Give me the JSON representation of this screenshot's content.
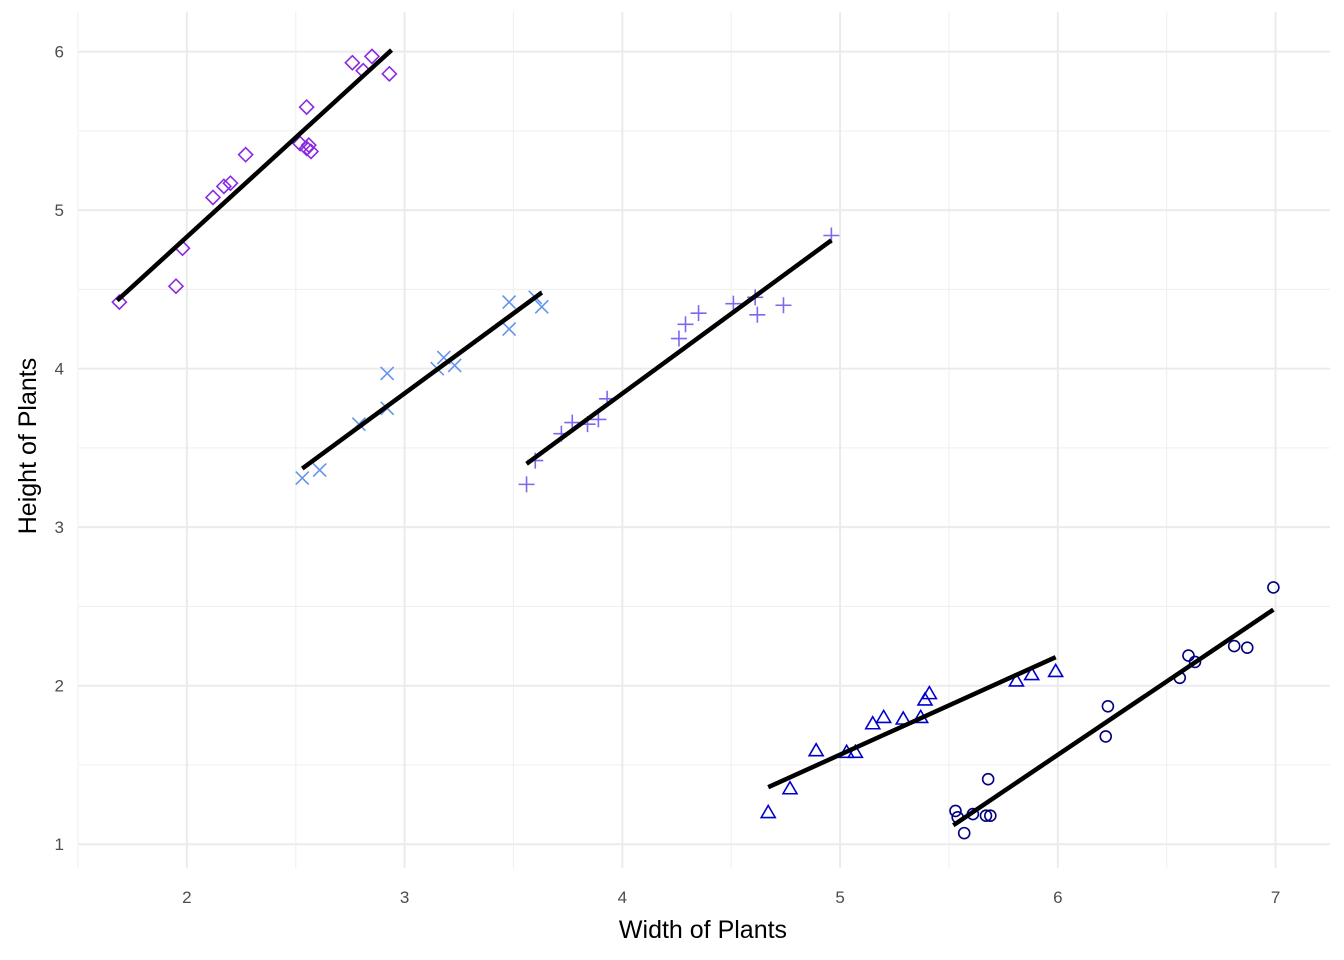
{
  "chart_data": {
    "type": "scatter",
    "title": "",
    "xlabel": "Width of Plants",
    "ylabel": "Height of Plants",
    "xlim": [
      1.5,
      7.25
    ],
    "ylim": [
      0.85,
      6.25
    ],
    "x_ticks": [
      2,
      3,
      4,
      5,
      6,
      7
    ],
    "y_ticks": [
      1,
      2,
      3,
      4,
      5,
      6
    ],
    "grid": true,
    "legend": "none",
    "series": [
      {
        "marker": "diamond",
        "color": "#8a2be2",
        "points": [
          [
            1.69,
            4.42
          ],
          [
            1.95,
            4.52
          ],
          [
            1.98,
            4.76
          ],
          [
            2.12,
            5.08
          ],
          [
            2.17,
            5.15
          ],
          [
            2.2,
            5.17
          ],
          [
            2.27,
            5.35
          ],
          [
            2.52,
            5.42
          ],
          [
            2.55,
            5.39
          ],
          [
            2.55,
            5.65
          ],
          [
            2.56,
            5.41
          ],
          [
            2.57,
            5.37
          ],
          [
            2.76,
            5.93
          ],
          [
            2.81,
            5.88
          ],
          [
            2.85,
            5.97
          ],
          [
            2.93,
            5.86
          ]
        ],
        "fit": [
          [
            1.68,
            4.43
          ],
          [
            2.94,
            6.01
          ]
        ]
      },
      {
        "marker": "x",
        "color": "#6495ed",
        "points": [
          [
            2.53,
            3.31
          ],
          [
            2.61,
            3.36
          ],
          [
            2.79,
            3.65
          ],
          [
            2.92,
            3.97
          ],
          [
            2.92,
            3.75
          ],
          [
            3.15,
            4.0
          ],
          [
            3.18,
            4.07
          ],
          [
            3.23,
            4.02
          ],
          [
            3.48,
            4.42
          ],
          [
            3.48,
            4.25
          ],
          [
            3.6,
            4.45
          ],
          [
            3.63,
            4.39
          ]
        ],
        "fit": [
          [
            2.53,
            3.37
          ],
          [
            3.63,
            4.48
          ]
        ]
      },
      {
        "marker": "plus",
        "color": "#7b68ee",
        "points": [
          [
            3.56,
            3.27
          ],
          [
            3.6,
            3.42
          ],
          [
            3.72,
            3.59
          ],
          [
            3.77,
            3.66
          ],
          [
            3.84,
            3.65
          ],
          [
            3.89,
            3.68
          ],
          [
            3.93,
            3.81
          ],
          [
            4.26,
            4.19
          ],
          [
            4.29,
            4.28
          ],
          [
            4.35,
            4.35
          ],
          [
            4.51,
            4.41
          ],
          [
            4.61,
            4.45
          ],
          [
            4.62,
            4.34
          ],
          [
            4.74,
            4.4
          ],
          [
            4.96,
            4.84
          ]
        ],
        "fit": [
          [
            3.56,
            3.4
          ],
          [
            4.96,
            4.81
          ]
        ]
      },
      {
        "marker": "triangle",
        "color": "#0000cd",
        "points": [
          [
            4.67,
            1.2
          ],
          [
            4.77,
            1.35
          ],
          [
            4.89,
            1.59
          ],
          [
            5.03,
            1.58
          ],
          [
            5.07,
            1.58
          ],
          [
            5.15,
            1.76
          ],
          [
            5.2,
            1.8
          ],
          [
            5.29,
            1.79
          ],
          [
            5.37,
            1.8
          ],
          [
            5.39,
            1.91
          ],
          [
            5.41,
            1.95
          ],
          [
            5.81,
            2.03
          ],
          [
            5.88,
            2.07
          ],
          [
            5.99,
            2.09
          ]
        ],
        "fit": [
          [
            4.67,
            1.36
          ],
          [
            5.99,
            2.18
          ]
        ]
      },
      {
        "marker": "circle",
        "color": "#000080",
        "points": [
          [
            5.53,
            1.21
          ],
          [
            5.54,
            1.17
          ],
          [
            5.57,
            1.07
          ],
          [
            5.61,
            1.19
          ],
          [
            5.67,
            1.18
          ],
          [
            5.68,
            1.41
          ],
          [
            5.69,
            1.18
          ],
          [
            6.22,
            1.68
          ],
          [
            6.23,
            1.87
          ],
          [
            6.56,
            2.05
          ],
          [
            6.6,
            2.19
          ],
          [
            6.63,
            2.15
          ],
          [
            6.81,
            2.25
          ],
          [
            6.87,
            2.24
          ],
          [
            6.99,
            2.62
          ]
        ],
        "fit": [
          [
            5.52,
            1.12
          ],
          [
            6.99,
            2.48
          ]
        ]
      }
    ]
  }
}
